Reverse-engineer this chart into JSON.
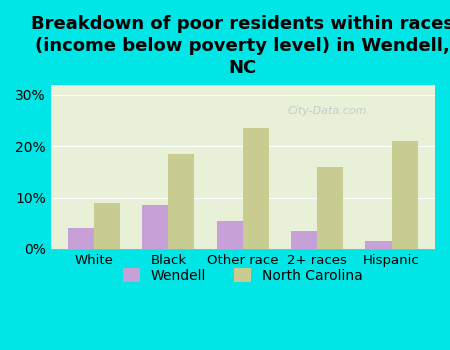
{
  "title": "Breakdown of poor residents within races\n(income below poverty level) in Wendell,\nNC",
  "categories": [
    "White",
    "Black",
    "Other race",
    "2+ races",
    "Hispanic"
  ],
  "wendell_values": [
    4.0,
    8.5,
    5.5,
    3.5,
    1.5
  ],
  "nc_values": [
    9.0,
    18.5,
    23.5,
    16.0,
    21.0
  ],
  "wendell_color": "#c8a0d8",
  "nc_color": "#c8cc90",
  "background_outer": "#00e5e5",
  "background_plot": "#e8f0d8",
  "ylim": [
    0,
    32
  ],
  "yticks": [
    0,
    10,
    20,
    30
  ],
  "ytick_labels": [
    "0%",
    "10%",
    "20%",
    "30%"
  ],
  "bar_width": 0.35,
  "title_fontsize": 13,
  "legend_wendell": "Wendell",
  "legend_nc": "North Carolina",
  "watermark": "City-Data.com"
}
